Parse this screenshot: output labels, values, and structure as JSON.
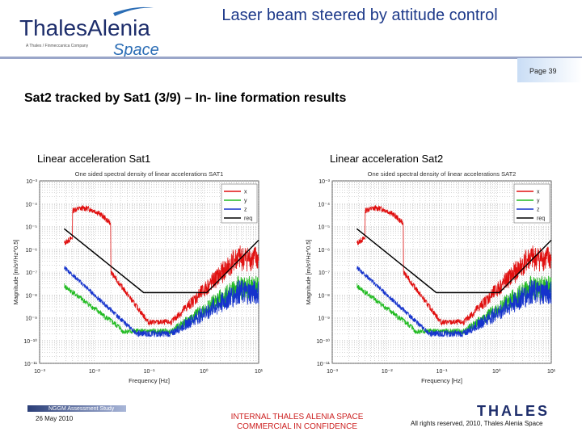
{
  "header": {
    "logo_main": "ThalesAlenia",
    "logo_tagline": "A Thales / Finmeccanica Company",
    "logo_space": "Space",
    "title": "Laser beam steered by attitude control",
    "page": "Page 39"
  },
  "subtitle": "Sat2 tracked by Sat1 (3/9) – In- line formation results",
  "charts": [
    {
      "label": "Linear acceleration Sat1",
      "plot_title": "One sided spectral density of linear accelerations SAT1"
    },
    {
      "label": "Linear acceleration Sat2",
      "plot_title": "One sided spectral density of linear accelerations SAT2"
    }
  ],
  "chart_data": [
    {
      "type": "line",
      "title": "One sided spectral density of linear accelerations SAT1",
      "xlabel": "Frequency [Hz]",
      "ylabel": "Magnitude [m/s²/Hz^0.5]",
      "x_scale": "log",
      "y_scale": "log",
      "xlim": [
        0.001,
        10
      ],
      "ylim": [
        1e-11,
        0.001
      ],
      "x_ticks": [
        "10⁻³",
        "10⁻²",
        "10⁻¹",
        "10⁰",
        "10¹"
      ],
      "y_ticks": [
        "10⁻³",
        "10⁻⁴",
        "10⁻⁵",
        "10⁻⁶",
        "10⁻⁷",
        "10⁻⁸",
        "10⁻⁹",
        "10⁻¹⁰",
        "10⁻¹¹"
      ],
      "series": [
        {
          "name": "x",
          "color": "#e01010"
        },
        {
          "name": "y",
          "color": "#22bb22"
        },
        {
          "name": "z",
          "color": "#1533cc"
        },
        {
          "name": "req",
          "color": "#000000"
        }
      ]
    },
    {
      "type": "line",
      "title": "One sided spectral density of linear accelerations SAT2",
      "xlabel": "Frequency [Hz]",
      "ylabel": "Magnitude [m/s²/Hz^0.5]",
      "x_scale": "log",
      "y_scale": "log",
      "xlim": [
        0.001,
        10
      ],
      "ylim": [
        1e-11,
        0.001
      ],
      "x_ticks": [
        "10⁻³",
        "10⁻²",
        "10⁻¹",
        "10⁰",
        "10¹"
      ],
      "y_ticks": [
        "10⁻³",
        "10⁻⁴",
        "10⁻⁵",
        "10⁻⁶",
        "10⁻⁷",
        "10⁻⁸",
        "10⁻⁹",
        "10⁻¹⁰",
        "10⁻¹¹"
      ],
      "series": [
        {
          "name": "x",
          "color": "#e01010"
        },
        {
          "name": "y",
          "color": "#22bb22"
        },
        {
          "name": "z",
          "color": "#1533cc"
        },
        {
          "name": "req",
          "color": "#000000"
        }
      ]
    }
  ],
  "footer": {
    "study": "NGGM Assessment Study",
    "date": "26 May 2010",
    "classification_1": "INTERNAL THALES ALENIA SPACE",
    "classification_2": "COMMERCIAL IN CONFIDENCE",
    "brand": "THALES",
    "rights": "All rights reserved, 2010, Thales Alenia Space"
  }
}
